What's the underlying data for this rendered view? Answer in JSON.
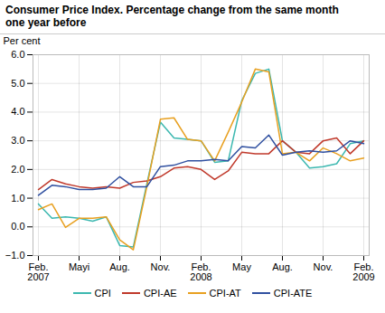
{
  "chart_data": {
    "type": "line",
    "title": "Consumer Price Index. Percentage change from the same month\none year before",
    "y_label": "Per cent",
    "categories": [
      "Feb.\n2007",
      null,
      null,
      "Mayi",
      null,
      null,
      "Aug.",
      null,
      null,
      "Nov.",
      null,
      null,
      "Feb.\n2008",
      null,
      null,
      "May",
      null,
      null,
      "Aug.",
      null,
      null,
      "Nov.",
      null,
      null,
      "Feb.\n2009"
    ],
    "series": [
      {
        "name": "CPI",
        "color": "#3cb8b0",
        "values": [
          0.8,
          0.3,
          0.35,
          0.3,
          0.2,
          0.35,
          -0.65,
          -0.7,
          1.5,
          3.65,
          3.1,
          3.05,
          3.0,
          2.25,
          2.3,
          4.4,
          5.35,
          5.5,
          3.0,
          2.6,
          2.05,
          2.1,
          2.2,
          2.9,
          3.0
        ]
      },
      {
        "name": "CPI-AE",
        "color": "#c0392b",
        "values": [
          1.3,
          1.65,
          1.5,
          1.4,
          1.35,
          1.4,
          1.35,
          1.55,
          1.6,
          1.75,
          2.05,
          2.1,
          2.0,
          1.65,
          1.95,
          2.6,
          2.55,
          2.55,
          3.0,
          2.6,
          2.55,
          3.0,
          3.1,
          2.55,
          3.0
        ]
      },
      {
        "name": "CPI-AT",
        "color": "#e8a020",
        "values": [
          0.6,
          0.8,
          -0.02,
          0.3,
          0.3,
          0.35,
          -0.45,
          -0.8,
          1.4,
          3.75,
          3.8,
          3.05,
          3.0,
          2.3,
          3.3,
          4.35,
          5.5,
          5.4,
          2.55,
          2.6,
          2.3,
          2.75,
          2.55,
          2.3,
          2.4
        ]
      },
      {
        "name": "CPI-ATE",
        "color": "#3050a0",
        "values": [
          1.1,
          1.45,
          1.4,
          1.3,
          1.3,
          1.35,
          1.75,
          1.4,
          1.4,
          2.1,
          2.15,
          2.3,
          2.3,
          2.35,
          2.3,
          2.8,
          2.75,
          3.2,
          2.5,
          2.6,
          2.65,
          2.6,
          2.65,
          3.0,
          2.9
        ]
      }
    ],
    "ylim": [
      -1,
      6
    ],
    "yticks": [
      -1,
      0,
      1,
      2,
      3,
      4,
      5,
      6
    ],
    "grid": true,
    "legend": "bottom"
  }
}
